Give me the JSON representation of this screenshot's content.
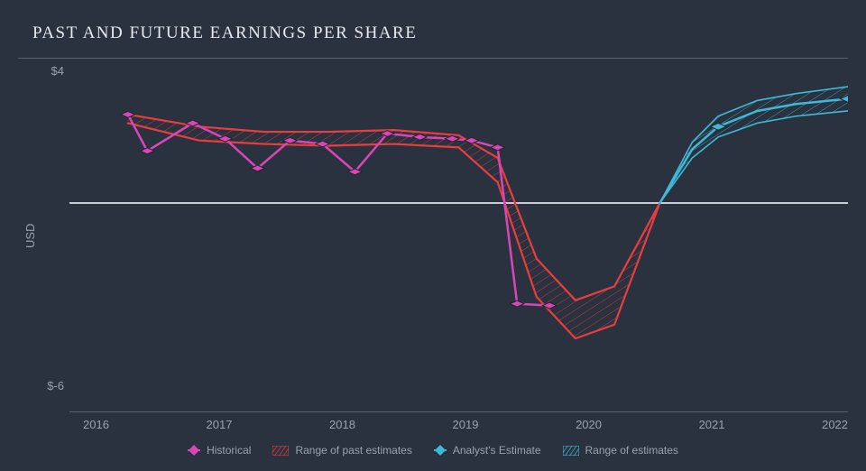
{
  "title": "PAST AND FUTURE EARNINGS PER SHARE",
  "type": "line",
  "background_color": "#2a3240",
  "grid_color": "#5a6270",
  "text_color": "#9aa2b0",
  "title_color": "#e8eaed",
  "title_fontsize": 19,
  "label_fontsize": 13,
  "xlim": [
    2016,
    2022
  ],
  "ylim": [
    -6,
    4
  ],
  "xtick_step": 1,
  "xticks": [
    "2016",
    "2017",
    "2018",
    "2019",
    "2020",
    "2021",
    "2022"
  ],
  "yticks_labels": [
    "$4",
    "$-6"
  ],
  "ylabel": "USD",
  "zero_line_color": "#c8ccd4",
  "series": {
    "historical": {
      "label": "Historical",
      "color": "#d946b5",
      "line_width": 2.5,
      "marker_size": 6,
      "marker_style": "diamond",
      "points": [
        [
          2016.45,
          2.55
        ],
        [
          2016.6,
          1.5
        ],
        [
          2016.95,
          2.3
        ],
        [
          2017.2,
          1.85
        ],
        [
          2017.45,
          1.0
        ],
        [
          2017.7,
          1.8
        ],
        [
          2017.95,
          1.7
        ],
        [
          2018.2,
          0.9
        ],
        [
          2018.45,
          2.0
        ],
        [
          2018.7,
          1.9
        ],
        [
          2018.95,
          1.85
        ],
        [
          2019.1,
          1.8
        ],
        [
          2019.3,
          1.6
        ],
        [
          2019.45,
          -2.9
        ],
        [
          2019.7,
          -2.95
        ]
      ]
    },
    "past_estimate_range": {
      "label": "Range of past estimates",
      "color": "#e83e3e",
      "hatch": true,
      "upper": [
        [
          2016.45,
          2.55
        ],
        [
          2017.0,
          2.2
        ],
        [
          2017.5,
          2.05
        ],
        [
          2018.0,
          2.05
        ],
        [
          2018.5,
          2.1
        ],
        [
          2019.0,
          1.95
        ],
        [
          2019.3,
          1.3
        ],
        [
          2019.6,
          -1.6
        ],
        [
          2019.9,
          -2.8
        ],
        [
          2020.2,
          -2.4
        ],
        [
          2020.55,
          0.0
        ]
      ],
      "lower": [
        [
          2016.45,
          2.3
        ],
        [
          2017.0,
          1.8
        ],
        [
          2017.5,
          1.7
        ],
        [
          2018.0,
          1.65
        ],
        [
          2018.5,
          1.7
        ],
        [
          2019.0,
          1.6
        ],
        [
          2019.3,
          0.6
        ],
        [
          2019.6,
          -2.7
        ],
        [
          2019.9,
          -3.9
        ],
        [
          2020.2,
          -3.5
        ],
        [
          2020.55,
          0.0
        ]
      ]
    },
    "analyst_estimate": {
      "label": "Analyst's Estimate",
      "color": "#3fb9d6",
      "line_width": 2.5,
      "marker_size": 6,
      "marker_style": "diamond",
      "points": [
        [
          2020.55,
          0.0
        ],
        [
          2020.8,
          1.55
        ],
        [
          2021.0,
          2.2
        ],
        [
          2021.3,
          2.65
        ],
        [
          2021.6,
          2.85
        ],
        [
          2022.0,
          3.0
        ]
      ],
      "markers_at": [
        [
          2021.0,
          2.2
        ],
        [
          2022.0,
          3.0
        ]
      ]
    },
    "estimate_range": {
      "label": "Range of estimates",
      "color": "#3fb9d6",
      "hatch": true,
      "upper": [
        [
          2020.55,
          0.0
        ],
        [
          2020.8,
          1.75
        ],
        [
          2021.0,
          2.5
        ],
        [
          2021.3,
          2.95
        ],
        [
          2021.6,
          3.15
        ],
        [
          2022.0,
          3.35
        ]
      ],
      "lower": [
        [
          2020.55,
          0.0
        ],
        [
          2020.8,
          1.3
        ],
        [
          2021.0,
          1.9
        ],
        [
          2021.3,
          2.3
        ],
        [
          2021.6,
          2.5
        ],
        [
          2022.0,
          2.65
        ]
      ]
    }
  },
  "legend_items": [
    {
      "kind": "marker",
      "color": "#d946b5",
      "label_path": "series.historical.label"
    },
    {
      "kind": "hatch",
      "color": "#e83e3e",
      "label_path": "series.past_estimate_range.label"
    },
    {
      "kind": "marker",
      "color": "#3fb9d6",
      "label_path": "series.analyst_estimate.label"
    },
    {
      "kind": "hatch",
      "color": "#3fb9d6",
      "label_path": "series.estimate_range.label"
    }
  ]
}
